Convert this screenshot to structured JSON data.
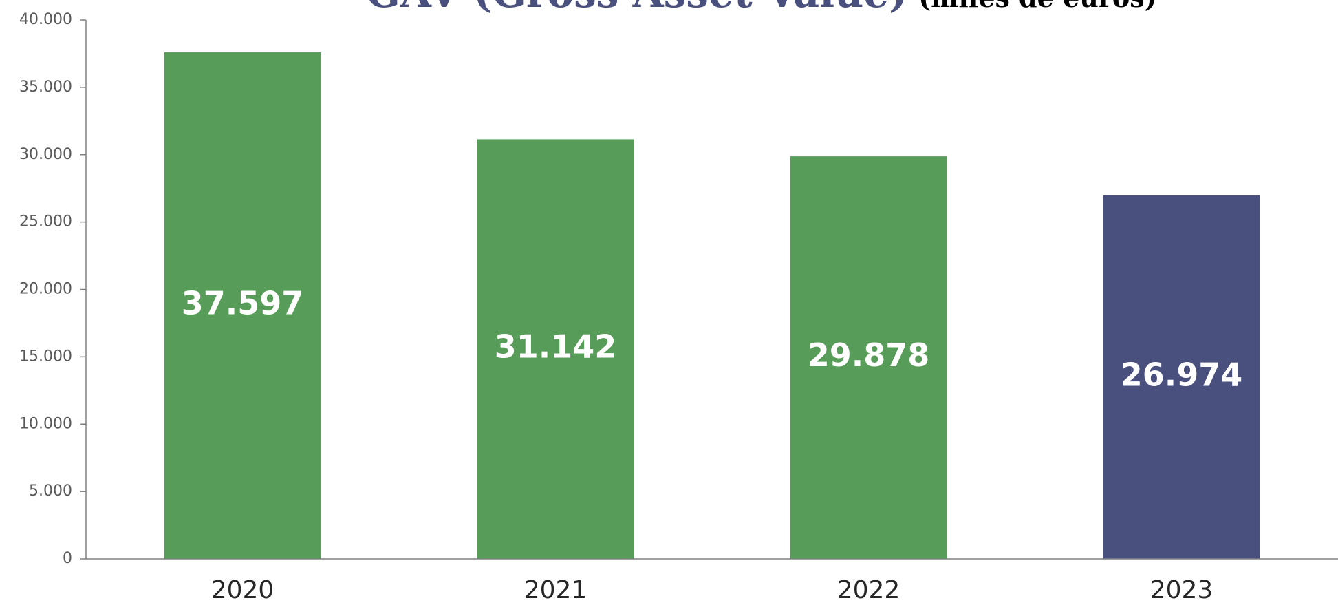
{
  "chart_data": {
    "type": "bar",
    "title": "GAV (Gross Asset Value)",
    "subtitle": "(miles de euros)",
    "categories": [
      "2020",
      "2021",
      "2022",
      "2023"
    ],
    "values": [
      37597,
      31142,
      29878,
      26974
    ],
    "value_labels": [
      "37.597",
      "31.142",
      "29.878",
      "26.974"
    ],
    "colors": [
      "#579c58",
      "#579c58",
      "#579c58",
      "#4a507e"
    ],
    "ylim": [
      0,
      40000
    ],
    "yticks": [
      0,
      {
        "value": 5000,
        "label": "5.000"
      },
      {
        "value": 10000,
        "label": "10.000"
      },
      {
        "value": 15000,
        "label": "15.000"
      },
      {
        "value": 20000,
        "label": "20.000"
      },
      {
        "value": 25000,
        "label": "25.000"
      },
      {
        "value": 30000,
        "label": "30.000"
      },
      {
        "value": 35000,
        "label": "35.000"
      },
      {
        "value": 40000,
        "label": "40.000"
      }
    ],
    "grid": false
  }
}
